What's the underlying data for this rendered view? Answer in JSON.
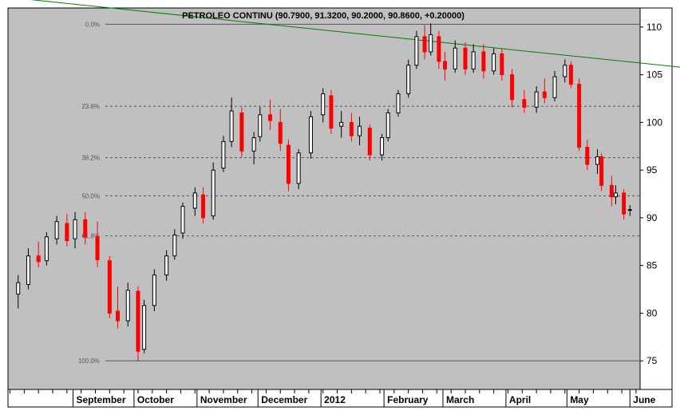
{
  "chart_data": {
    "type": "candlestick",
    "title": "PETROLEO CONTINU (90.7900, 91.3200, 90.2000, 90.8600, +0.20000)",
    "ylim": [
      72,
      112
    ],
    "y_ticks": [
      75,
      80,
      85,
      90,
      95,
      100,
      105,
      110
    ],
    "x_tick_labels": [
      "September",
      "October",
      "November",
      "December",
      "2012",
      "February",
      "March",
      "April",
      "May",
      "June"
    ],
    "colors": {
      "plot_bg": "#c0c0c0",
      "up": "#000000",
      "down": "#ff0000",
      "trendline": "#008000",
      "fib_line": "#555555"
    },
    "trendline": {
      "from_date": "2011-08-01",
      "from_value": 113.1,
      "to_date": "2012-06-30",
      "to_value": 105.7
    },
    "fib_levels": [
      {
        "label": "0.0%",
        "value": 110.3,
        "style": "solid"
      },
      {
        "label": "23.6%",
        "value": 101.7,
        "style": "dashed"
      },
      {
        "label": "38.2%",
        "value": 96.3,
        "style": "dashed"
      },
      {
        "label": "50.0%",
        "value": 92.3,
        "style": "dashed"
      },
      {
        "label": "61.8%",
        "value": 88.1,
        "style": "dashed"
      },
      {
        "label": "100.0%",
        "value": 75.0,
        "style": "solid"
      }
    ],
    "series": [
      {
        "name": "PETROLEO CONTINU",
        "ohlc": [
          [
            "2011-08-05",
            82.0,
            84.0,
            80.5,
            83.2
          ],
          [
            "2011-08-10",
            83.0,
            86.8,
            82.5,
            86.0
          ],
          [
            "2011-08-15",
            86.0,
            87.5,
            84.8,
            85.4
          ],
          [
            "2011-08-19",
            85.5,
            88.5,
            85.0,
            88.0
          ],
          [
            "2011-08-24",
            87.8,
            90.2,
            87.2,
            89.6
          ],
          [
            "2011-08-29",
            89.4,
            90.4,
            87.0,
            87.6
          ],
          [
            "2011-09-02",
            87.8,
            90.6,
            86.8,
            89.8
          ],
          [
            "2011-09-07",
            89.8,
            90.6,
            87.2,
            88.0
          ],
          [
            "2011-09-13",
            88.0,
            89.6,
            84.8,
            85.6
          ],
          [
            "2011-09-19",
            85.5,
            86.0,
            79.5,
            80.0
          ],
          [
            "2011-09-23",
            80.2,
            82.8,
            78.4,
            79.2
          ],
          [
            "2011-09-28",
            79.2,
            83.2,
            78.6,
            82.4
          ],
          [
            "2011-10-03",
            82.3,
            82.8,
            75.0,
            76.0
          ],
          [
            "2011-10-06",
            76.2,
            81.4,
            75.8,
            80.8
          ],
          [
            "2011-10-11",
            80.8,
            84.6,
            80.2,
            84.0
          ],
          [
            "2011-10-17",
            84.0,
            86.6,
            83.4,
            86.0
          ],
          [
            "2011-10-21",
            86.0,
            88.8,
            85.6,
            88.2
          ],
          [
            "2011-10-25",
            88.4,
            91.6,
            87.8,
            91.2
          ],
          [
            "2011-10-31",
            91.0,
            93.2,
            90.2,
            92.6
          ],
          [
            "2011-11-04",
            92.4,
            93.2,
            89.4,
            90.0
          ],
          [
            "2011-11-09",
            90.2,
            95.8,
            89.8,
            95.0
          ],
          [
            "2011-11-14",
            95.2,
            98.6,
            94.8,
            98.0
          ],
          [
            "2011-11-18",
            98.0,
            102.6,
            97.4,
            101.2
          ],
          [
            "2011-11-23",
            101.0,
            101.6,
            96.4,
            97.0
          ],
          [
            "2011-11-29",
            97.0,
            99.0,
            95.6,
            98.4
          ],
          [
            "2011-12-02",
            98.5,
            101.6,
            98.0,
            100.8
          ],
          [
            "2011-12-07",
            100.8,
            102.4,
            99.2,
            100.2
          ],
          [
            "2011-12-12",
            100.0,
            101.4,
            97.0,
            97.8
          ],
          [
            "2011-12-16",
            97.6,
            98.2,
            92.8,
            93.6
          ],
          [
            "2011-12-21",
            93.6,
            97.2,
            93.0,
            96.8
          ],
          [
            "2011-12-27",
            96.8,
            101.2,
            96.2,
            100.6
          ],
          [
            "2012-01-02",
            100.8,
            103.6,
            100.0,
            103.0
          ],
          [
            "2012-01-06",
            102.8,
            103.4,
            98.8,
            99.4
          ],
          [
            "2012-01-11",
            99.6,
            101.2,
            98.4,
            100.0
          ],
          [
            "2012-01-16",
            100.0,
            101.0,
            98.0,
            98.6
          ],
          [
            "2012-01-20",
            98.6,
            100.6,
            97.6,
            99.6
          ],
          [
            "2012-01-25",
            99.4,
            99.8,
            96.0,
            96.6
          ],
          [
            "2012-01-31",
            96.6,
            98.8,
            96.0,
            98.4
          ],
          [
            "2012-02-03",
            98.4,
            101.4,
            98.0,
            101.0
          ],
          [
            "2012-02-08",
            101.0,
            103.4,
            100.6,
            103.0
          ],
          [
            "2012-02-13",
            103.0,
            106.6,
            102.6,
            106.0
          ],
          [
            "2012-02-17",
            106.0,
            109.6,
            105.6,
            109.0
          ],
          [
            "2012-02-21",
            109.0,
            110.2,
            106.6,
            107.4
          ],
          [
            "2012-02-24",
            107.4,
            110.4,
            107.0,
            109.2
          ],
          [
            "2012-02-28",
            109.0,
            109.6,
            105.6,
            106.4
          ],
          [
            "2012-03-02",
            106.4,
            107.4,
            104.4,
            105.6
          ],
          [
            "2012-03-07",
            105.6,
            108.6,
            105.2,
            107.8
          ],
          [
            "2012-03-12",
            107.8,
            108.4,
            105.0,
            105.6
          ],
          [
            "2012-03-16",
            105.6,
            108.2,
            105.2,
            107.4
          ],
          [
            "2012-03-21",
            107.4,
            108.2,
            104.6,
            105.4
          ],
          [
            "2012-03-26",
            105.4,
            107.8,
            105.0,
            107.2
          ],
          [
            "2012-03-30",
            107.2,
            107.8,
            104.4,
            105.0
          ],
          [
            "2012-04-04",
            105.0,
            105.6,
            101.6,
            102.4
          ],
          [
            "2012-04-10",
            102.4,
            103.4,
            101.0,
            101.6
          ],
          [
            "2012-04-16",
            101.6,
            103.8,
            101.0,
            103.2
          ],
          [
            "2012-04-20",
            103.2,
            104.6,
            102.0,
            102.6
          ],
          [
            "2012-04-25",
            102.6,
            105.4,
            102.2,
            104.8
          ],
          [
            "2012-04-30",
            104.8,
            106.6,
            104.2,
            106.0
          ],
          [
            "2012-05-03",
            106.0,
            106.4,
            103.6,
            104.0
          ],
          [
            "2012-05-07",
            104.0,
            104.6,
            97.0,
            97.4
          ],
          [
            "2012-05-11",
            97.4,
            98.2,
            95.0,
            95.6
          ],
          [
            "2012-05-16",
            95.6,
            97.2,
            94.6,
            96.4
          ],
          [
            "2012-05-18",
            96.4,
            96.8,
            92.8,
            93.4
          ],
          [
            "2012-05-23",
            93.4,
            94.4,
            91.2,
            92.2
          ],
          [
            "2012-05-25",
            92.2,
            93.4,
            91.4,
            92.6
          ],
          [
            "2012-05-29",
            92.6,
            93.0,
            89.8,
            90.4
          ],
          [
            "2012-06-01",
            90.79,
            91.32,
            90.2,
            90.86
          ]
        ]
      }
    ]
  }
}
